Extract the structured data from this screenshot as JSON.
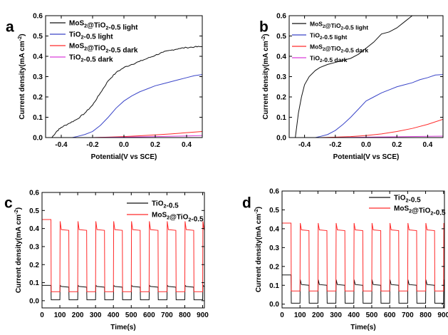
{
  "colors": {
    "black": "#111111",
    "blue": "#3a45c8",
    "red": "#ff2a2a",
    "magenta": "#d93fd9"
  },
  "chart_data": [
    {
      "type": "line",
      "panel_label": "a",
      "xlabel": "Potential(V vs SCE)",
      "ylabel": "Current density(mA cm",
      "ylabel_unit_sup": "-2",
      "ylabel_close": ")",
      "xlim": [
        -0.5,
        0.5
      ],
      "ylim": [
        0.0,
        0.6
      ],
      "xticks": [
        "-0.4",
        "-0.2",
        "0.0",
        "0.2",
        "0.4"
      ],
      "xtick_values": [
        -0.4,
        -0.2,
        0.0,
        0.2,
        0.4
      ],
      "yticks": [
        "0.0",
        "0.1",
        "0.2",
        "0.3",
        "0.4",
        "0.5",
        "0.6"
      ],
      "ytick_values": [
        0.0,
        0.1,
        0.2,
        0.3,
        0.4,
        0.5,
        0.6
      ],
      "legend_position": "top-left",
      "series": [
        {
          "name": "MoS2@TiO2-0.5 light",
          "color": "#111111",
          "noisy": true,
          "x": [
            -0.46,
            -0.43,
            -0.4,
            -0.35,
            -0.3,
            -0.25,
            -0.2,
            -0.15,
            -0.1,
            -0.05,
            0.0,
            0.05,
            0.1,
            0.15,
            0.2,
            0.25,
            0.3,
            0.35,
            0.4,
            0.45,
            0.5
          ],
          "y": [
            0.0,
            0.03,
            0.05,
            0.07,
            0.09,
            0.12,
            0.16,
            0.22,
            0.28,
            0.32,
            0.345,
            0.36,
            0.375,
            0.39,
            0.405,
            0.42,
            0.43,
            0.438,
            0.443,
            0.446,
            0.448
          ]
        },
        {
          "name": "TiO2-0.5 light",
          "color": "#3a45c8",
          "noisy": false,
          "x": [
            -0.5,
            -0.33,
            -0.3,
            -0.25,
            -0.2,
            -0.15,
            -0.1,
            -0.05,
            0.0,
            0.05,
            0.1,
            0.15,
            0.2,
            0.25,
            0.3,
            0.35,
            0.4,
            0.45,
            0.5
          ],
          "y": [
            0.0,
            0.0,
            0.005,
            0.015,
            0.03,
            0.06,
            0.1,
            0.145,
            0.18,
            0.205,
            0.225,
            0.24,
            0.255,
            0.265,
            0.275,
            0.285,
            0.295,
            0.305,
            0.31
          ]
        },
        {
          "name": "MoS2@TiO2-0.5 dark",
          "color": "#ff2a2a",
          "noisy": false,
          "x": [
            -0.5,
            -0.2,
            -0.1,
            0.0,
            0.1,
            0.2,
            0.3,
            0.4,
            0.5
          ],
          "y": [
            0.0,
            0.0,
            0.002,
            0.005,
            0.009,
            0.013,
            0.018,
            0.024,
            0.03
          ]
        },
        {
          "name": "TiO2-0.5 dark",
          "color": "#d93fd9",
          "noisy": false,
          "x": [
            -0.5,
            -0.2,
            0.0,
            0.2,
            0.4,
            0.5
          ],
          "y": [
            0.0,
            0.0,
            0.002,
            0.005,
            0.008,
            0.01
          ]
        }
      ]
    },
    {
      "type": "line",
      "panel_label": "b",
      "xlabel": "Potential(V vs SCE)",
      "ylabel": "Current density(mA cm",
      "ylabel_unit_sup": "-2",
      "ylabel_close": ")",
      "xlim": [
        -0.5,
        0.5
      ],
      "ylim": [
        0.0,
        0.6
      ],
      "xticks": [
        "-0.4",
        "-0.2",
        "0.0",
        "0.2",
        "0.4"
      ],
      "xtick_values": [
        -0.4,
        -0.2,
        0.0,
        0.2,
        0.4
      ],
      "yticks": [
        "0.0",
        "0.1",
        "0.2",
        "0.3",
        "0.4",
        "0.5",
        "0.6"
      ],
      "ytick_values": [
        0.0,
        0.1,
        0.2,
        0.3,
        0.4,
        0.5,
        0.6
      ],
      "legend_position": "top-left",
      "series": [
        {
          "name": "MoS2@TiO2-0.5 light",
          "color": "#111111",
          "noisy": false,
          "x": [
            -0.46,
            -0.44,
            -0.42,
            -0.4,
            -0.37,
            -0.33,
            -0.3,
            -0.25,
            -0.2,
            -0.15,
            -0.1,
            -0.05,
            0.0,
            0.05,
            0.1,
            0.15,
            0.2,
            0.25,
            0.3,
            0.35
          ],
          "y": [
            0.0,
            0.12,
            0.2,
            0.26,
            0.3,
            0.33,
            0.345,
            0.36,
            0.37,
            0.38,
            0.39,
            0.41,
            0.44,
            0.47,
            0.51,
            0.52,
            0.54,
            0.57,
            0.6,
            0.61
          ]
        },
        {
          "name": "TiO2-0.5 light",
          "color": "#3a45c8",
          "noisy": false,
          "x": [
            -0.5,
            -0.33,
            -0.3,
            -0.25,
            -0.2,
            -0.15,
            -0.1,
            -0.05,
            0.0,
            0.05,
            0.1,
            0.15,
            0.2,
            0.25,
            0.3,
            0.35,
            0.4,
            0.45,
            0.5
          ],
          "y": [
            0.0,
            0.0,
            0.005,
            0.015,
            0.035,
            0.065,
            0.1,
            0.14,
            0.18,
            0.2,
            0.22,
            0.235,
            0.25,
            0.26,
            0.27,
            0.285,
            0.295,
            0.308,
            0.31
          ]
        },
        {
          "name": "MoS2@TiO2-0.5 dark",
          "color": "#ff2a2a",
          "noisy": false,
          "x": [
            -0.5,
            -0.3,
            -0.2,
            -0.1,
            0.0,
            0.1,
            0.2,
            0.3,
            0.4,
            0.5
          ],
          "y": [
            0.0,
            0.0,
            0.002,
            0.005,
            0.01,
            0.018,
            0.03,
            0.045,
            0.065,
            0.09
          ]
        },
        {
          "name": "TiO2-0.5 dark",
          "color": "#d93fd9",
          "noisy": false,
          "x": [
            -0.5,
            -0.2,
            0.0,
            0.2,
            0.4,
            0.5
          ],
          "y": [
            0.0,
            0.0,
            0.002,
            0.004,
            0.006,
            0.007
          ]
        }
      ]
    },
    {
      "type": "line",
      "subtype": "chopped-transient",
      "panel_label": "c",
      "xlabel": "Time(s)",
      "ylabel": "Current density(mA cm",
      "ylabel_unit_sup": "-2",
      "ylabel_close": ")",
      "xlim": [
        0,
        910
      ],
      "ylim": [
        -0.04,
        0.6
      ],
      "xticks": [
        "0",
        "100",
        "200",
        "300",
        "400",
        "500",
        "600",
        "700",
        "800",
        "900"
      ],
      "xtick_values": [
        0,
        100,
        200,
        300,
        400,
        500,
        600,
        700,
        800,
        900
      ],
      "yticks": [
        "0.0",
        "0.1",
        "0.2",
        "0.3",
        "0.4",
        "0.5",
        "0.6"
      ],
      "ytick_values": [
        0.0,
        0.1,
        0.2,
        0.3,
        0.4,
        0.5,
        0.6
      ],
      "legend_position": "top-right",
      "series": [
        {
          "name": "TiO2-0.5",
          "color": "#111111",
          "first_on": 50,
          "period": 100,
          "on_duration": 50,
          "n_pulses": 9,
          "light_spike": 0.085,
          "light_steady": 0.075,
          "dark_level": 0.005,
          "initial_level": 0.085,
          "end_time": 910
        },
        {
          "name": "MoS2@TiO2-0.5",
          "color": "#ff2a2a",
          "first_on": 50,
          "period": 100,
          "on_duration": 50,
          "n_pulses": 9,
          "light_spike": 0.44,
          "light_steady": 0.39,
          "dark_level": 0.05,
          "initial_level": 0.45,
          "end_time": 910
        }
      ]
    },
    {
      "type": "line",
      "subtype": "chopped-transient",
      "panel_label": "d",
      "xlabel": "Time(s)",
      "ylabel": "Current density(mA cm",
      "ylabel_unit_sup": "-2",
      "ylabel_close": ")",
      "xlim": [
        0,
        905
      ],
      "ylim": [
        -0.02,
        0.6
      ],
      "xticks": [
        "0",
        "100",
        "200",
        "300",
        "400",
        "500",
        "600",
        "700",
        "800",
        "900"
      ],
      "xtick_values": [
        0,
        100,
        200,
        300,
        400,
        500,
        600,
        700,
        800,
        900
      ],
      "yticks": [
        "0.0",
        "0.1",
        "0.2",
        "0.3",
        "0.4",
        "0.5",
        "0.6"
      ],
      "ytick_values": [
        0.0,
        0.1,
        0.2,
        0.3,
        0.4,
        0.5,
        0.6
      ],
      "legend_position": "top-right",
      "series": [
        {
          "name": "TiO2-0.5",
          "color": "#111111",
          "first_on": 50,
          "period": 100,
          "on_duration": 50,
          "n_pulses": 9,
          "light_spike": 0.13,
          "light_steady": 0.1,
          "dark_level": 0.005,
          "initial_level": 0.155,
          "end_time": 905
        },
        {
          "name": "MoS2@TiO2-0.5",
          "color": "#ff2a2a",
          "first_on": 50,
          "period": 100,
          "on_duration": 50,
          "n_pulses": 9,
          "light_spike": 0.43,
          "light_steady": 0.39,
          "dark_level": 0.07,
          "initial_level": 0.43,
          "end_time": 905
        }
      ]
    }
  ]
}
